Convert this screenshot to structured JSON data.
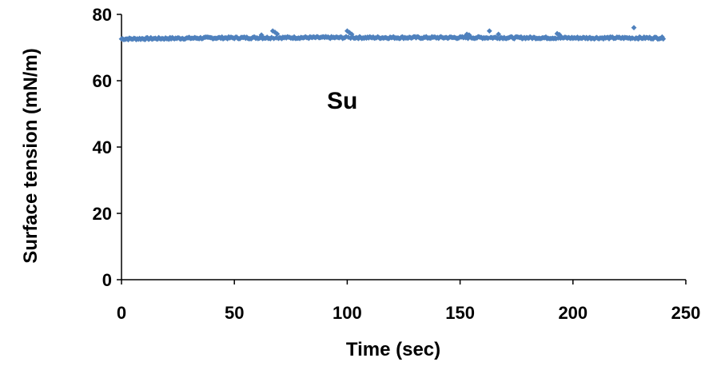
{
  "chart_data": {
    "type": "scatter",
    "title": "",
    "xlabel": "Time (sec)",
    "ylabel": "Surface tension (mN/m)",
    "xlim": [
      0,
      250
    ],
    "ylim": [
      0,
      80
    ],
    "x_ticks": [
      "0",
      "50",
      "100",
      "150",
      "200",
      "250"
    ],
    "y_ticks": [
      "0",
      "20",
      "40",
      "60",
      "80"
    ],
    "grid": false,
    "legend": "none",
    "annotation": "Su",
    "marker_color": "#4F81BD",
    "marker": "diamond",
    "series": [
      {
        "x_start": 0,
        "x_end": 240,
        "x_step": 0.5,
        "baseline": [
          [
            0,
            72.6
          ],
          [
            40,
            72.9
          ],
          [
            80,
            73.0
          ],
          [
            120,
            73.0
          ],
          [
            160,
            73.0
          ],
          [
            200,
            72.9
          ],
          [
            240,
            72.9
          ]
        ],
        "noise": 0.3,
        "deviations": [
          {
            "x": 62,
            "y": 73.8
          },
          {
            "x": 67,
            "y": 75.0
          },
          {
            "x": 68,
            "y": 74.6
          },
          {
            "x": 69,
            "y": 74.1
          },
          {
            "x": 100,
            "y": 75.0
          },
          {
            "x": 101,
            "y": 74.5
          },
          {
            "x": 102,
            "y": 74.0
          },
          {
            "x": 153,
            "y": 74.0
          },
          {
            "x": 154,
            "y": 73.8
          },
          {
            "x": 163,
            "y": 75.0
          },
          {
            "x": 167,
            "y": 74.0
          },
          {
            "x": 193,
            "y": 74.2
          },
          {
            "x": 194,
            "y": 73.9
          },
          {
            "x": 227,
            "y": 76.0
          }
        ]
      }
    ]
  }
}
